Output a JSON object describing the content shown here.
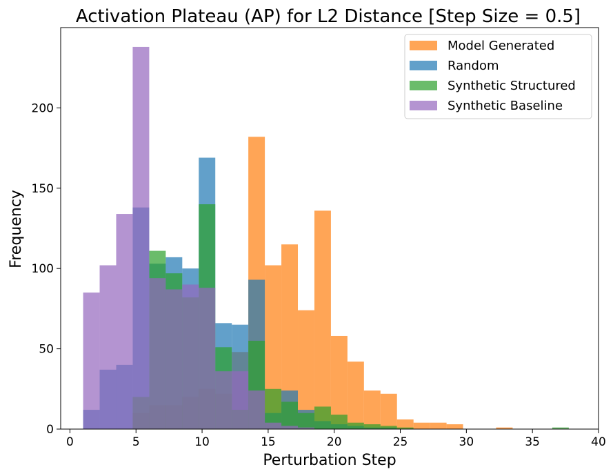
{
  "chart_data": {
    "type": "histogram",
    "title": "Activation Plateau (AP) for L2 Distance [Step Size = 0.5]",
    "xlabel": "Perturbation Step",
    "ylabel": "Frequency",
    "xlim": [
      -0.7,
      40
    ],
    "ylim": [
      0,
      250
    ],
    "xticks": [
      0,
      5,
      10,
      15,
      20,
      25,
      30,
      35,
      40
    ],
    "yticks": [
      0,
      50,
      100,
      150,
      200
    ],
    "legend_position": "top-right",
    "series": [
      {
        "name": "Model Generated",
        "color": "#ff7f0e",
        "alpha": 0.7,
        "bins": [
          {
            "x0": 1.0,
            "x1": 2.25,
            "count": 0
          },
          {
            "x0": 2.25,
            "x1": 3.5,
            "count": 0
          },
          {
            "x0": 3.5,
            "x1": 4.75,
            "count": 0
          },
          {
            "x0": 4.75,
            "x1": 6.0,
            "count": 10
          },
          {
            "x0": 6.0,
            "x1": 7.25,
            "count": 15
          },
          {
            "x0": 7.25,
            "x1": 8.5,
            "count": 15
          },
          {
            "x0": 8.5,
            "x1": 9.75,
            "count": 20
          },
          {
            "x0": 9.75,
            "x1": 11.0,
            "count": 25
          },
          {
            "x0": 11.0,
            "x1": 12.25,
            "count": 22
          },
          {
            "x0": 12.25,
            "x1": 13.5,
            "count": 48
          },
          {
            "x0": 13.5,
            "x1": 14.75,
            "count": 182
          },
          {
            "x0": 14.75,
            "x1": 16.0,
            "count": 102
          },
          {
            "x0": 16.0,
            "x1": 17.25,
            "count": 115
          },
          {
            "x0": 17.25,
            "x1": 18.5,
            "count": 74
          },
          {
            "x0": 18.5,
            "x1": 19.75,
            "count": 136
          },
          {
            "x0": 19.75,
            "x1": 21.0,
            "count": 58
          },
          {
            "x0": 21.0,
            "x1": 22.25,
            "count": 42
          },
          {
            "x0": 22.25,
            "x1": 23.5,
            "count": 24
          },
          {
            "x0": 23.5,
            "x1": 24.75,
            "count": 22
          },
          {
            "x0": 24.75,
            "x1": 26.0,
            "count": 6
          },
          {
            "x0": 26.0,
            "x1": 27.25,
            "count": 4
          },
          {
            "x0": 27.25,
            "x1": 28.5,
            "count": 4
          },
          {
            "x0": 28.5,
            "x1": 29.75,
            "count": 3
          },
          {
            "x0": 29.75,
            "x1": 31.0,
            "count": 0
          },
          {
            "x0": 31.0,
            "x1": 32.25,
            "count": 0
          },
          {
            "x0": 32.25,
            "x1": 33.5,
            "count": 1
          },
          {
            "x0": 33.5,
            "x1": 34.75,
            "count": 0
          }
        ]
      },
      {
        "name": "Random",
        "color": "#1f77b4",
        "alpha": 0.7,
        "bins": [
          {
            "x0": 1.0,
            "x1": 2.25,
            "count": 12
          },
          {
            "x0": 2.25,
            "x1": 3.5,
            "count": 37
          },
          {
            "x0": 3.5,
            "x1": 4.75,
            "count": 40
          },
          {
            "x0": 4.75,
            "x1": 6.0,
            "count": 138
          },
          {
            "x0": 6.0,
            "x1": 7.25,
            "count": 103
          },
          {
            "x0": 7.25,
            "x1": 8.5,
            "count": 107
          },
          {
            "x0": 8.5,
            "x1": 9.75,
            "count": 100
          },
          {
            "x0": 9.75,
            "x1": 11.0,
            "count": 169
          },
          {
            "x0": 11.0,
            "x1": 12.25,
            "count": 66
          },
          {
            "x0": 12.25,
            "x1": 13.5,
            "count": 65
          },
          {
            "x0": 13.5,
            "x1": 14.75,
            "count": 93
          },
          {
            "x0": 14.75,
            "x1": 16.0,
            "count": 10
          },
          {
            "x0": 16.0,
            "x1": 17.25,
            "count": 24
          },
          {
            "x0": 17.25,
            "x1": 18.5,
            "count": 12
          },
          {
            "x0": 18.5,
            "x1": 19.75,
            "count": 5
          },
          {
            "x0": 19.75,
            "x1": 21.0,
            "count": 3
          },
          {
            "x0": 21.0,
            "x1": 22.25,
            "count": 2
          },
          {
            "x0": 22.25,
            "x1": 23.5,
            "count": 1
          },
          {
            "x0": 23.5,
            "x1": 24.75,
            "count": 1
          }
        ]
      },
      {
        "name": "Synthetic Structured",
        "color": "#2ca02c",
        "alpha": 0.7,
        "bins": [
          {
            "x0": 1.0,
            "x1": 2.25,
            "count": 0
          },
          {
            "x0": 2.25,
            "x1": 3.5,
            "count": 0
          },
          {
            "x0": 3.5,
            "x1": 4.75,
            "count": 0
          },
          {
            "x0": 4.75,
            "x1": 6.0,
            "count": 20
          },
          {
            "x0": 6.0,
            "x1": 7.25,
            "count": 111
          },
          {
            "x0": 7.25,
            "x1": 8.5,
            "count": 97
          },
          {
            "x0": 8.5,
            "x1": 9.75,
            "count": 82
          },
          {
            "x0": 9.75,
            "x1": 11.0,
            "count": 140
          },
          {
            "x0": 11.0,
            "x1": 12.25,
            "count": 51
          },
          {
            "x0": 12.25,
            "x1": 13.5,
            "count": 12
          },
          {
            "x0": 13.5,
            "x1": 14.75,
            "count": 55
          },
          {
            "x0": 14.75,
            "x1": 16.0,
            "count": 25
          },
          {
            "x0": 16.0,
            "x1": 17.25,
            "count": 17
          },
          {
            "x0": 17.25,
            "x1": 18.5,
            "count": 10
          },
          {
            "x0": 18.5,
            "x1": 19.75,
            "count": 14
          },
          {
            "x0": 19.75,
            "x1": 21.0,
            "count": 9
          },
          {
            "x0": 21.0,
            "x1": 22.25,
            "count": 4
          },
          {
            "x0": 22.25,
            "x1": 23.5,
            "count": 3
          },
          {
            "x0": 23.5,
            "x1": 24.75,
            "count": 2
          },
          {
            "x0": 24.75,
            "x1": 26.0,
            "count": 1
          },
          {
            "x0": 26.0,
            "x1": 27.25,
            "count": 0
          },
          {
            "x0": 36.5,
            "x1": 37.75,
            "count": 1
          }
        ]
      },
      {
        "name": "Synthetic Baseline",
        "color": "#9467bd",
        "alpha": 0.7,
        "bins": [
          {
            "x0": 1.0,
            "x1": 2.25,
            "count": 85
          },
          {
            "x0": 2.25,
            "x1": 3.5,
            "count": 102
          },
          {
            "x0": 3.5,
            "x1": 4.75,
            "count": 134
          },
          {
            "x0": 4.75,
            "x1": 6.0,
            "count": 238
          },
          {
            "x0": 6.0,
            "x1": 7.25,
            "count": 94
          },
          {
            "x0": 7.25,
            "x1": 8.5,
            "count": 87
          },
          {
            "x0": 8.5,
            "x1": 9.75,
            "count": 90
          },
          {
            "x0": 9.75,
            "x1": 11.0,
            "count": 88
          },
          {
            "x0": 11.0,
            "x1": 12.25,
            "count": 36
          },
          {
            "x0": 12.25,
            "x1": 13.5,
            "count": 36
          },
          {
            "x0": 13.5,
            "x1": 14.75,
            "count": 24
          },
          {
            "x0": 14.75,
            "x1": 16.0,
            "count": 4
          },
          {
            "x0": 16.0,
            "x1": 17.25,
            "count": 2
          },
          {
            "x0": 17.25,
            "x1": 18.5,
            "count": 1
          },
          {
            "x0": 18.5,
            "x1": 19.75,
            "count": 0
          }
        ]
      }
    ]
  }
}
